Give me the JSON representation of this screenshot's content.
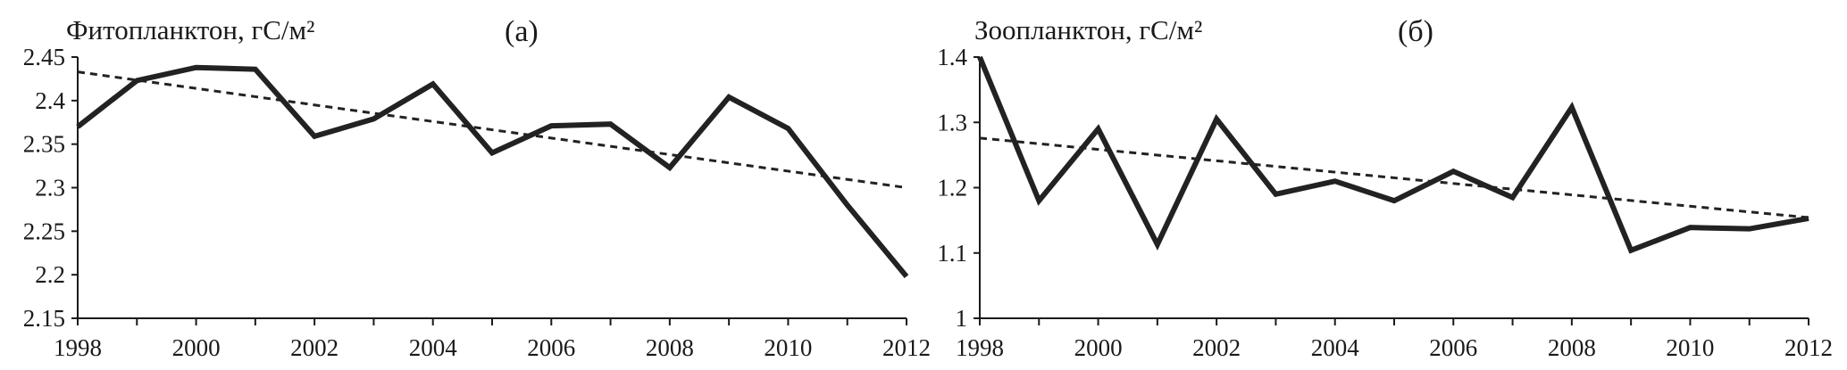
{
  "chart_data": [
    {
      "type": "line",
      "title": "Фитопланктон, гС/м²",
      "panel_label": "(а)",
      "x": [
        1998,
        1999,
        2000,
        2001,
        2002,
        2003,
        2004,
        2005,
        2006,
        2007,
        2008,
        2009,
        2010,
        2011,
        2012
      ],
      "xticks": [
        1998,
        2000,
        2002,
        2004,
        2006,
        2008,
        2010,
        2012
      ],
      "xlim": [
        1998,
        2012
      ],
      "ylim": [
        2.15,
        2.45
      ],
      "yticks": [
        "2.15",
        "2.2",
        "2.25",
        "2.3",
        "2.35",
        "2.4",
        "2.45"
      ],
      "xlabel": "",
      "ylabel": "",
      "series": [
        {
          "style": "solid",
          "values": [
            2.37,
            2.423,
            2.438,
            2.436,
            2.359,
            2.379,
            2.419,
            2.34,
            2.371,
            2.373,
            2.323,
            2.404,
            2.368,
            2.28,
            2.198
          ]
        },
        {
          "style": "dashed",
          "values": [
            2.433,
            2.4235,
            2.414,
            2.4045,
            2.395,
            2.3855,
            2.376,
            2.3665,
            2.357,
            2.3475,
            2.338,
            2.3285,
            2.319,
            2.3095,
            2.3
          ]
        }
      ],
      "grid": false
    },
    {
      "type": "line",
      "title": "Зоопланктон, гС/м²",
      "panel_label": "(б)",
      "x": [
        1998,
        1999,
        2000,
        2001,
        2002,
        2003,
        2004,
        2005,
        2006,
        2007,
        2008,
        2009,
        2010,
        2011,
        2012
      ],
      "xticks": [
        1998,
        2000,
        2002,
        2004,
        2006,
        2008,
        2010,
        2012
      ],
      "xlim": [
        1998,
        2012
      ],
      "ylim": [
        1.0,
        1.4
      ],
      "yticks": [
        "1",
        "1.1",
        "1.2",
        "1.3",
        "1.4"
      ],
      "xlabel": "",
      "ylabel": "",
      "series": [
        {
          "style": "solid",
          "values": [
            1.4,
            1.18,
            1.29,
            1.113,
            1.305,
            1.19,
            1.21,
            1.18,
            1.225,
            1.185,
            1.323,
            1.104,
            1.139,
            1.137,
            1.153
          ]
        },
        {
          "style": "dashed",
          "values": [
            1.276,
            1.2673,
            1.2586,
            1.2499,
            1.2412,
            1.2325,
            1.2238,
            1.2151,
            1.2064,
            1.1977,
            1.189,
            1.1803,
            1.1716,
            1.1629,
            1.1542
          ]
        }
      ],
      "grid": false
    }
  ]
}
